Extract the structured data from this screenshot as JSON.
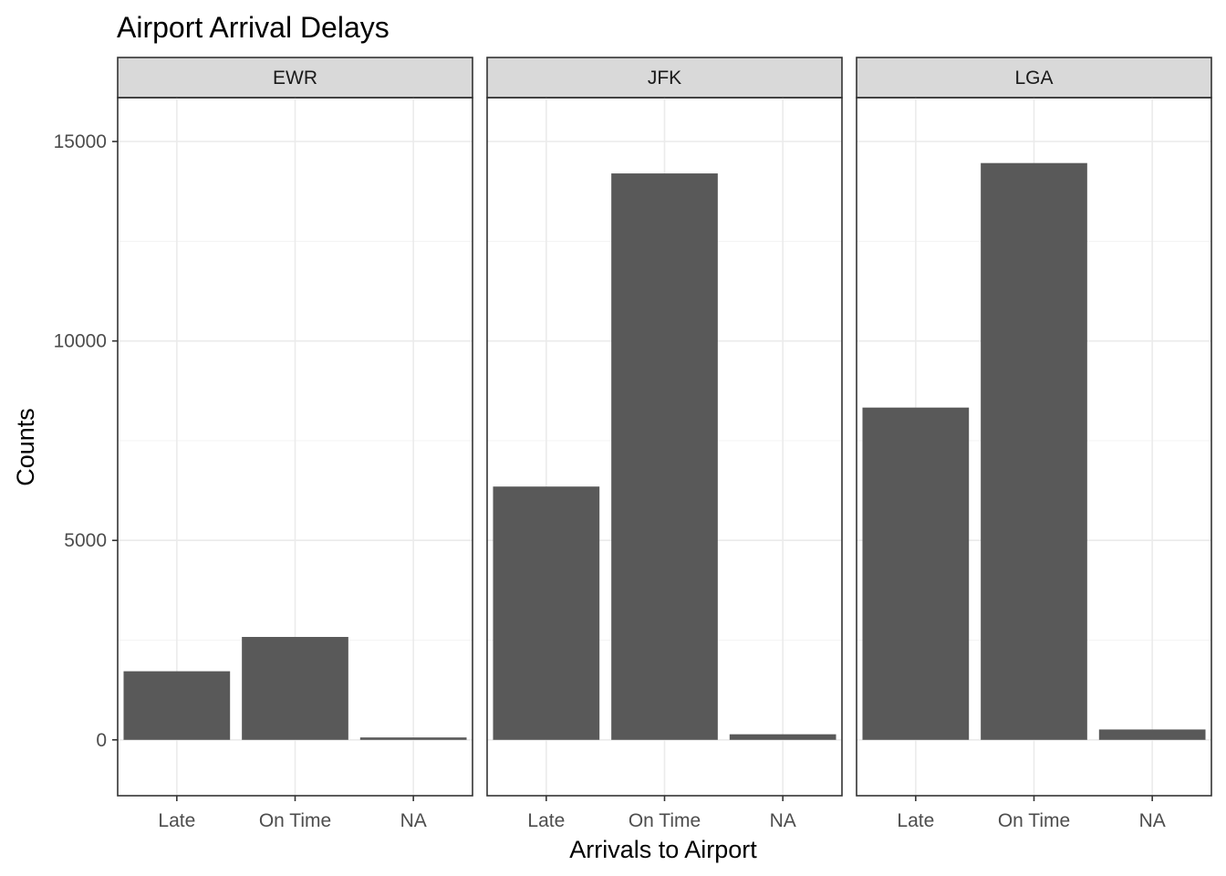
{
  "chart_data": {
    "type": "bar",
    "title": "Airport Arrival Delays",
    "xlabel": "Arrivals to Airport",
    "ylabel": "Counts",
    "ylim": [
      -1400,
      16100
    ],
    "yticks": [
      0,
      5000,
      10000,
      15000
    ],
    "grid": true,
    "categories": [
      "Late",
      "On Time",
      "NA"
    ],
    "facets": [
      {
        "name": "EWR",
        "values": [
          1720,
          2580,
          60
        ]
      },
      {
        "name": "JFK",
        "values": [
          6350,
          14200,
          140
        ]
      },
      {
        "name": "LGA",
        "values": [
          8330,
          14460,
          260
        ]
      }
    ],
    "colors": {
      "bar": "#595959",
      "strip": "#d9d9d9",
      "grid": "#ebebeb"
    }
  }
}
